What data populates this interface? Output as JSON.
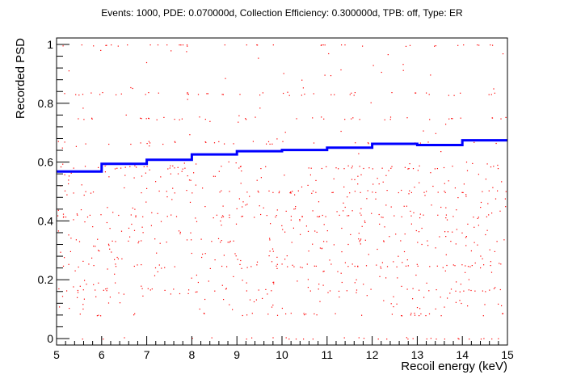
{
  "chart_data": {
    "type": "scatter",
    "title": "Events: 1000, PDE: 0.070000d, Collection Efficiency: 0.300000d, TPB: off, Type: ER",
    "xlabel": "Recoil energy (keV)",
    "ylabel": "Recorded PSD",
    "xlim": [
      5,
      15
    ],
    "ylim": [
      0,
      1
    ],
    "x_ticks": [
      "5",
      "6",
      "7",
      "8",
      "9",
      "10",
      "11",
      "12",
      "13",
      "14",
      "15"
    ],
    "y_ticks": [
      "0",
      "0.2",
      "0.4",
      "0.6",
      "0.8",
      "1"
    ],
    "grid": false,
    "series": [
      {
        "kind": "step",
        "color": "#0000ff",
        "bin_edges": [
          5,
          6,
          7,
          8,
          9,
          10,
          11,
          12,
          13,
          14,
          15
        ],
        "values": [
          0.568,
          0.594,
          0.608,
          0.626,
          0.637,
          0.641,
          0.649,
          0.662,
          0.658,
          0.674
        ]
      },
      {
        "kind": "points",
        "color": "#ff0000",
        "count": 1000
      }
    ]
  }
}
